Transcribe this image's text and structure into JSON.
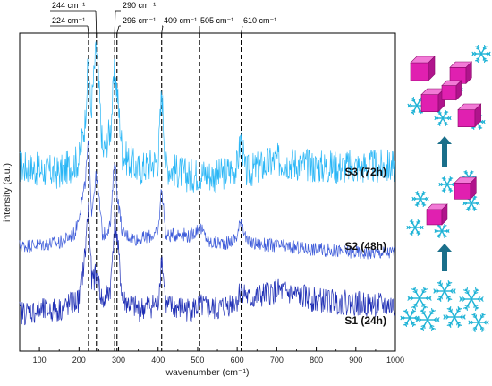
{
  "chart_data": {
    "type": "line",
    "title": "",
    "xlabel": "wavenumber (cm⁻¹)",
    "ylabel": "intensity (a.u.)",
    "xlim": [
      50,
      1000
    ],
    "x_ticks": [
      "100",
      "200",
      "300",
      "400",
      "500",
      "600",
      "700",
      "800",
      "900",
      "1000"
    ],
    "y_ticks": [],
    "grid": false,
    "peak_lines": [
      {
        "x": 224,
        "label": "224 cm⁻¹"
      },
      {
        "x": 244,
        "label": "244 cm⁻¹"
      },
      {
        "x": 290,
        "label": "290 cm⁻¹"
      },
      {
        "x": 296,
        "label": "296 cm⁻¹"
      },
      {
        "x": 409,
        "label": "409 cm⁻¹"
      },
      {
        "x": 505,
        "label": "505 cm⁻¹"
      },
      {
        "x": 610,
        "label": "610 cm⁻¹"
      }
    ],
    "series": [
      {
        "name": "S3 (72h)",
        "color": "#29b6f6",
        "x": [
          50,
          150,
          200,
          215,
          224,
          230,
          244,
          260,
          280,
          290,
          296,
          310,
          350,
          400,
          409,
          420,
          480,
          505,
          550,
          600,
          610,
          620,
          700,
          800,
          900,
          1000
        ],
        "y": [
          0.58,
          0.56,
          0.6,
          0.72,
          0.92,
          0.75,
          0.96,
          0.62,
          0.7,
          0.88,
          0.82,
          0.62,
          0.57,
          0.6,
          0.82,
          0.58,
          0.55,
          0.56,
          0.55,
          0.58,
          0.68,
          0.56,
          0.6,
          0.58,
          0.58,
          0.58
        ]
      },
      {
        "name": "S2 (48h)",
        "color": "#3d5bd9",
        "x": [
          50,
          150,
          190,
          205,
          215,
          224,
          232,
          244,
          260,
          280,
          290,
          296,
          310,
          350,
          400,
          409,
          420,
          460,
          480,
          505,
          530,
          580,
          600,
          610,
          625,
          700,
          800,
          900,
          1000
        ],
        "y": [
          0.33,
          0.34,
          0.37,
          0.46,
          0.52,
          0.66,
          0.44,
          0.56,
          0.36,
          0.4,
          0.62,
          0.5,
          0.37,
          0.35,
          0.37,
          0.52,
          0.36,
          0.37,
          0.36,
          0.39,
          0.34,
          0.34,
          0.36,
          0.42,
          0.34,
          0.33,
          0.32,
          0.31,
          0.31
        ]
      },
      {
        "name": "S1 (24h)",
        "color": "#1f2fb5",
        "x": [
          50,
          150,
          200,
          215,
          224,
          232,
          244,
          260,
          280,
          290,
          296,
          310,
          350,
          400,
          409,
          420,
          480,
          505,
          550,
          600,
          610,
          630,
          700,
          800,
          900,
          1000
        ],
        "y": [
          0.12,
          0.13,
          0.16,
          0.3,
          0.46,
          0.22,
          0.24,
          0.15,
          0.2,
          0.42,
          0.36,
          0.16,
          0.13,
          0.15,
          0.3,
          0.14,
          0.13,
          0.14,
          0.13,
          0.16,
          0.2,
          0.16,
          0.19,
          0.16,
          0.15,
          0.14
        ]
      }
    ]
  },
  "schematic": {
    "arrow_color": "#1a6f8a",
    "cube_color": "#e020b0",
    "flake_color": "#1fb3d6",
    "icons": [
      "snowflake-icon",
      "cube-icon",
      "arrow-up-icon"
    ]
  }
}
